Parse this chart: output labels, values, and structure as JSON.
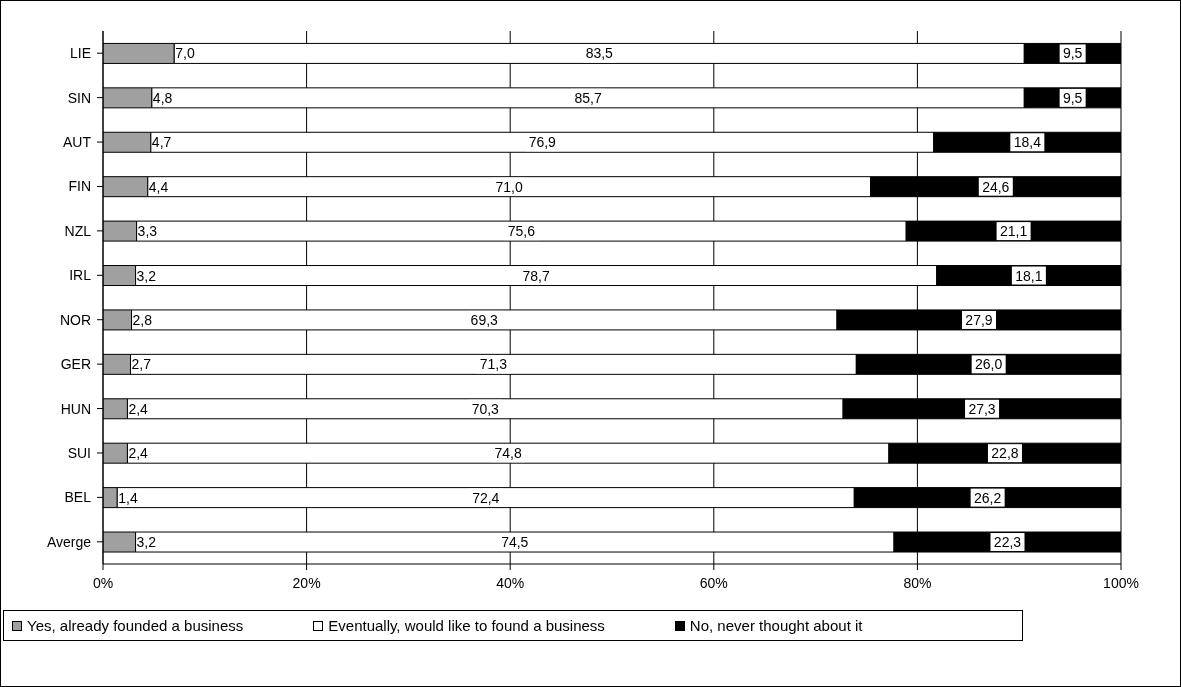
{
  "chart_data": {
    "type": "bar",
    "orientation": "horizontal",
    "stacked": true,
    "categories": [
      "LIE",
      "SIN",
      "AUT",
      "FIN",
      "NZL",
      "IRL",
      "NOR",
      "GER",
      "HUN",
      "SUI",
      "BEL",
      "Averge"
    ],
    "series": [
      {
        "name": "Yes, already founded a business",
        "color": "#a0a0a0",
        "values": [
          7.0,
          4.8,
          4.7,
          4.4,
          3.3,
          3.2,
          2.8,
          2.7,
          2.4,
          2.4,
          1.4,
          3.2
        ],
        "value_labels": [
          "7,0",
          "4,8",
          "4,7",
          "4,4",
          "3,3",
          "3,2",
          "2,8",
          "2,7",
          "2,4",
          "2,4",
          "1,4",
          "3,2"
        ]
      },
      {
        "name": "Eventually, would like to found a business",
        "color": "#ffffff",
        "values": [
          83.5,
          85.7,
          76.9,
          71.0,
          75.6,
          78.7,
          69.3,
          71.3,
          70.3,
          74.8,
          72.4,
          74.5
        ],
        "value_labels": [
          "83,5",
          "85,7",
          "76,9",
          "71,0",
          "75,6",
          "78,7",
          "69,3",
          "71,3",
          "70,3",
          "74,8",
          "72,4",
          "74,5"
        ]
      },
      {
        "name": "No, never thought about it",
        "color": "#000000",
        "values": [
          9.5,
          9.5,
          18.4,
          24.6,
          21.1,
          18.1,
          27.9,
          26.0,
          27.3,
          22.8,
          26.2,
          22.3
        ],
        "value_labels": [
          "9,5",
          "9,5",
          "18,4",
          "24,6",
          "21,1",
          "18,1",
          "27,9",
          "26,0",
          "27,3",
          "22,8",
          "26,2",
          "22,3"
        ]
      }
    ],
    "xlim": [
      0,
      100
    ],
    "xticks": [
      {
        "value": 0,
        "label": "0%"
      },
      {
        "value": 20,
        "label": "20%"
      },
      {
        "value": 40,
        "label": "40%"
      },
      {
        "value": 60,
        "label": "60%"
      },
      {
        "value": 80,
        "label": "80%"
      },
      {
        "value": 100,
        "label": "100%"
      }
    ],
    "grid": "x",
    "legend": "bottom left"
  }
}
